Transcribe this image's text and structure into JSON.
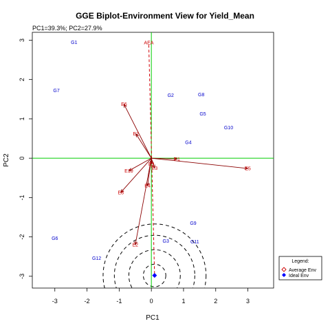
{
  "chart_data": {
    "type": "scatter",
    "title": "GGE Biplot-Environment View for Yield_Mean",
    "subtitle": "PC1=39.3%; PC2=27.9%",
    "xlabel": "PC1",
    "ylabel": "PC2",
    "xlim": [
      -3.7,
      3.8
    ],
    "ylim": [
      -3.3,
      3.2
    ],
    "xticks": [
      "-3",
      "-2",
      "-1",
      "0",
      "1",
      "2",
      "3"
    ],
    "yticks": [
      "-3",
      "-2",
      "-1",
      "0",
      "1",
      "2",
      "3"
    ],
    "xtick_values": [
      -3,
      -2,
      -1,
      0,
      1,
      2,
      3
    ],
    "ytick_values": [
      -3,
      -2,
      -1,
      0,
      1,
      2,
      3
    ],
    "genotypes": [
      {
        "label": "G1",
        "x": -2.4,
        "y": 2.95
      },
      {
        "label": "G7",
        "x": -2.95,
        "y": 1.72
      },
      {
        "label": "G2",
        "x": 0.6,
        "y": 1.6
      },
      {
        "label": "G8",
        "x": 1.55,
        "y": 1.62
      },
      {
        "label": "G5",
        "x": 1.6,
        "y": 1.13
      },
      {
        "label": "G10",
        "x": 2.4,
        "y": 0.78
      },
      {
        "label": "G4",
        "x": 1.15,
        "y": 0.4
      },
      {
        "label": "G9",
        "x": 1.3,
        "y": -1.65
      },
      {
        "label": "G3",
        "x": 0.45,
        "y": -2.1
      },
      {
        "label": "G11",
        "x": 1.35,
        "y": -2.12
      },
      {
        "label": "G6",
        "x": -3.0,
        "y": -2.03
      },
      {
        "label": "G12",
        "x": -1.7,
        "y": -2.54
      }
    ],
    "environments": [
      {
        "label": "E6",
        "x": -0.85,
        "y": 1.37
      },
      {
        "label": "E7",
        "x": -0.48,
        "y": 0.62
      },
      {
        "label": "E10",
        "x": -0.7,
        "y": -0.32
      },
      {
        "label": "E8",
        "x": -0.95,
        "y": -0.87
      },
      {
        "label": "E2",
        "x": -0.5,
        "y": -2.2
      },
      {
        "label": "E4",
        "x": -0.12,
        "y": -0.7
      },
      {
        "label": "E1",
        "x": 0.8,
        "y": -0.02
      },
      {
        "label": "E5",
        "x": 3.0,
        "y": -0.26
      },
      {
        "label": "E9",
        "x": 0.0,
        "y": -0.15
      },
      {
        "label": "E3",
        "x": 0.1,
        "y": -0.25
      }
    ],
    "average_env": {
      "label": "AEA",
      "x": -0.08,
      "y": 2.95
    },
    "ideal_env": {
      "x": 0.1,
      "y": -2.98
    },
    "circle_radii": [
      0.35,
      0.8,
      1.25,
      1.6
    ],
    "colors": {
      "genotype": "#0000cc",
      "environment": "#cc0000",
      "vector": "#8b0000",
      "axis_lines": "#00cc00",
      "ideal": "#0000ff"
    },
    "legend": {
      "title": "Legend:",
      "placement": "bottom-right",
      "items": [
        {
          "label": "Average Env",
          "marker": "open-diamond",
          "color": "#cc0000"
        },
        {
          "label": "Ideal Env",
          "marker": "filled-diamond",
          "color": "#0000ff"
        }
      ]
    }
  }
}
